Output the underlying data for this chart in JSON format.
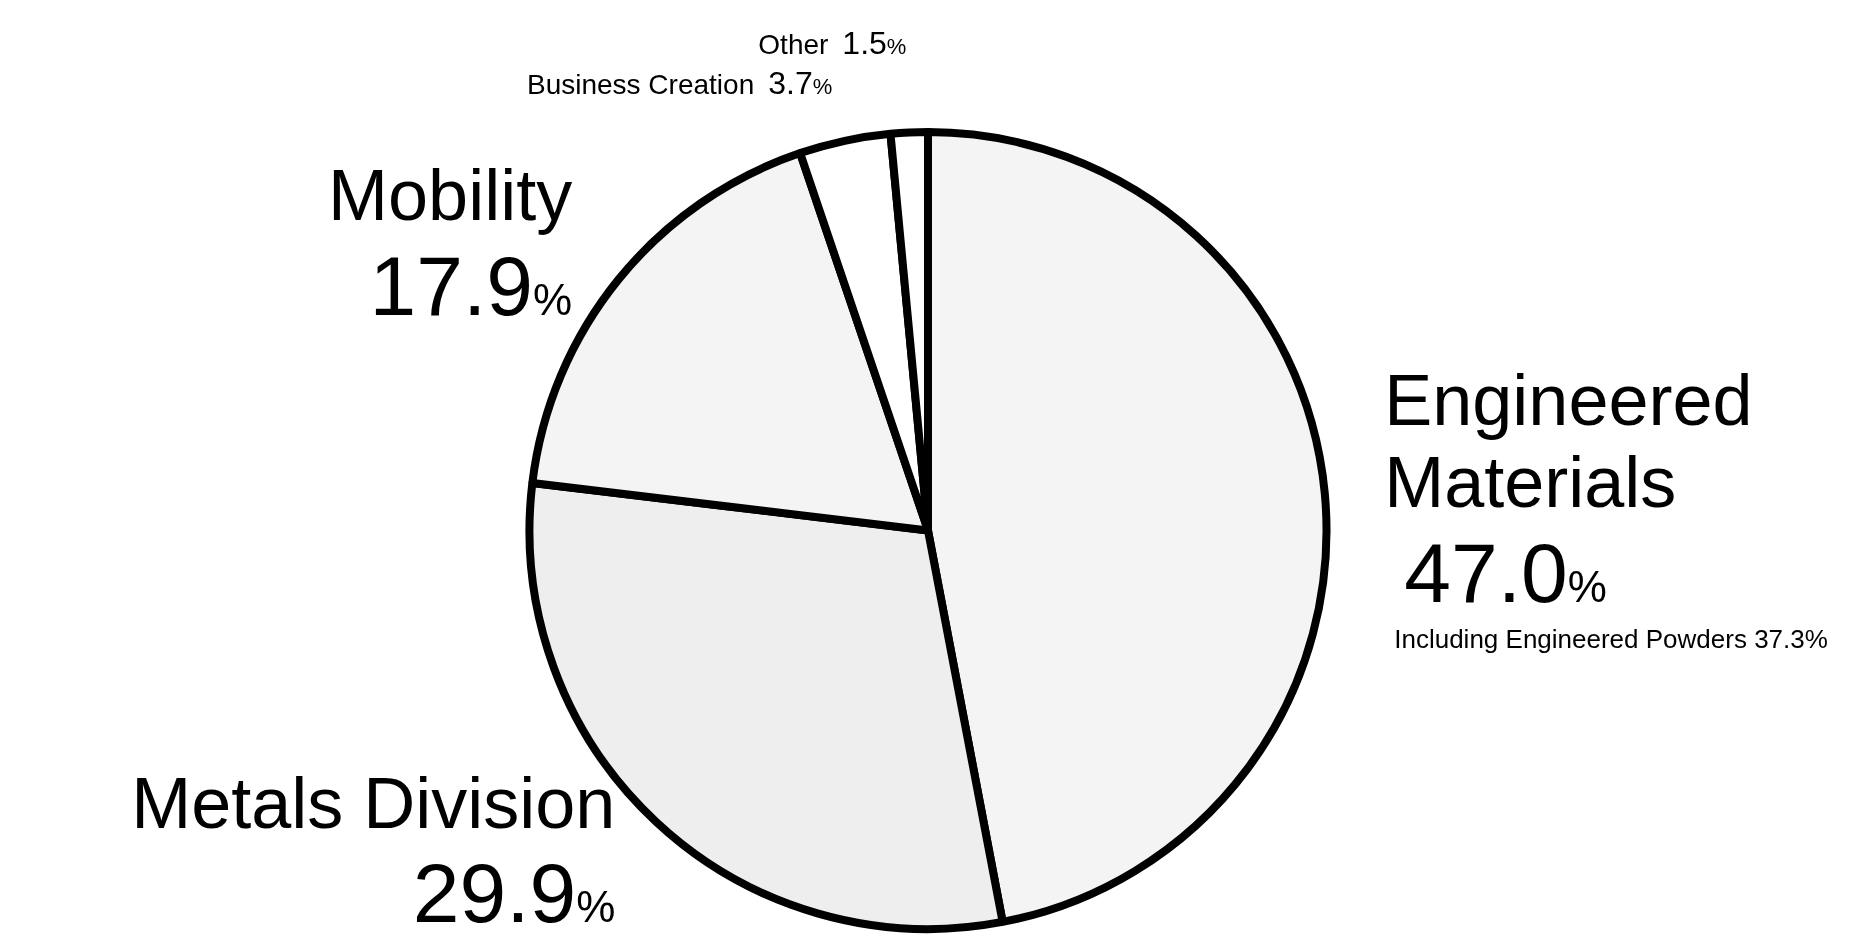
{
  "chart_data": {
    "type": "pie",
    "categories": [
      "Engineered Materials",
      "Metals Division",
      "Mobility",
      "Business Creation",
      "Other"
    ],
    "values": [
      47.0,
      29.9,
      17.9,
      3.7,
      1.5
    ],
    "colors": [
      "#f4f4f4",
      "#eeeeee",
      "#f4f4f4",
      "#ffffff",
      "#ffffff"
    ],
    "value_labels": [
      "47.0%",
      "29.9%",
      "17.9%",
      "3.7%",
      "1.5%"
    ],
    "annotations": [
      "Including Engineered Powders 37.3%"
    ]
  }
}
